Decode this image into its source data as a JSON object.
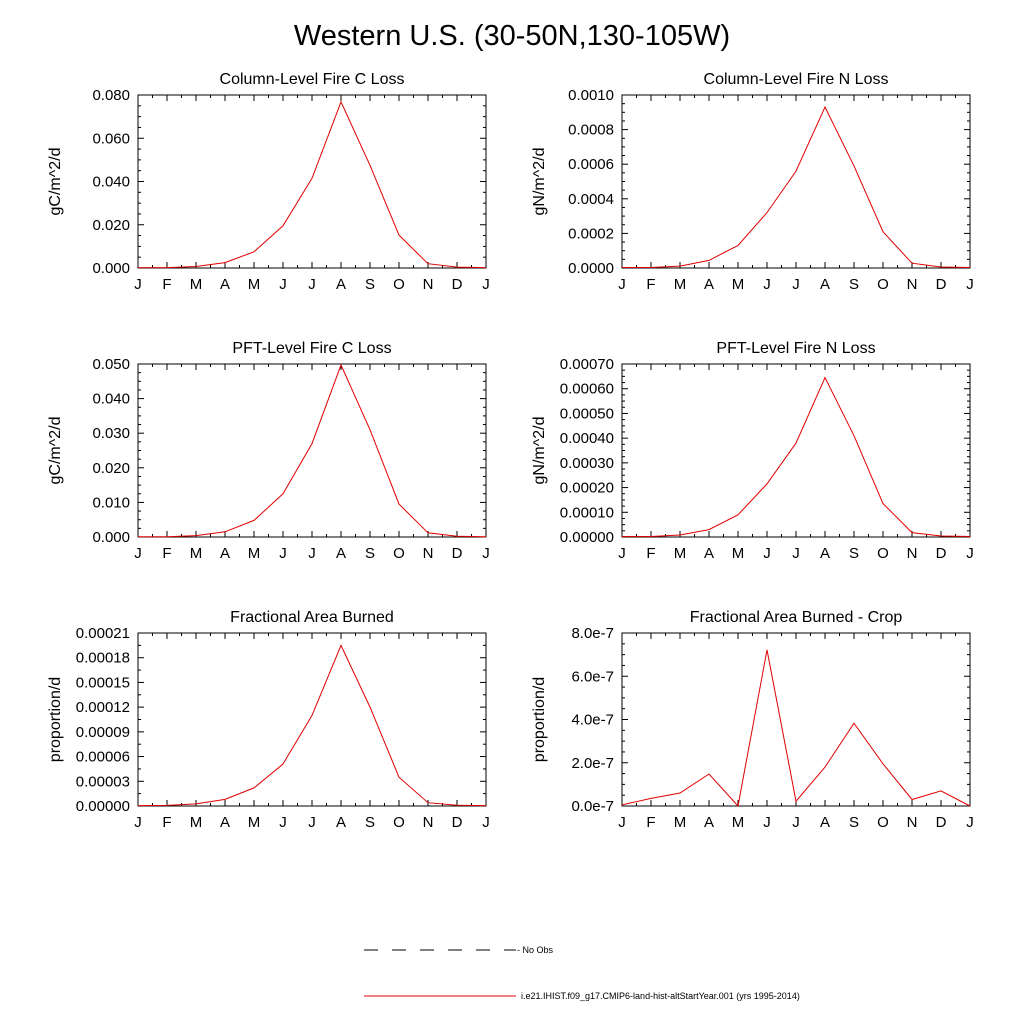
{
  "figure": {
    "title": "Western U.S. (30-50N,130-105W)"
  },
  "colors": {
    "series": "#e00000",
    "axes": "#000000",
    "obs_line": "#000000"
  },
  "legend": {
    "items": [
      {
        "label": "No Obs",
        "style": "dashed"
      },
      {
        "label": "i.e21.IHIST.f09_g17.CMIP6-land-hist-altStartYear.001 (yrs 1995-2014)",
        "style": "solid-red"
      }
    ]
  },
  "chart_data": [
    {
      "type": "line",
      "title": "Column-Level Fire C Loss",
      "ylabel": "gC/m^2/d",
      "categories": [
        "J",
        "F",
        "M",
        "A",
        "M",
        "J",
        "J",
        "A",
        "S",
        "O",
        "N",
        "D",
        "J"
      ],
      "ylim": [
        0,
        0.08
      ],
      "yticks": [
        "0.000",
        "0.020",
        "0.040",
        "0.060",
        "0.080"
      ],
      "minor_per_major": 4,
      "series": [
        {
          "values": [
            0.0002,
            0.0002,
            0.0007,
            0.0025,
            0.0075,
            0.0195,
            0.0415,
            0.0768,
            0.0475,
            0.0152,
            0.002,
            0.0004,
            0.0002
          ]
        }
      ]
    },
    {
      "type": "line",
      "title": "Column-Level Fire N Loss",
      "ylabel": "gN/m^2/d",
      "categories": [
        "J",
        "F",
        "M",
        "A",
        "M",
        "J",
        "J",
        "A",
        "S",
        "O",
        "N",
        "D",
        "J"
      ],
      "ylim": [
        0,
        0.001
      ],
      "yticks": [
        "0.0000",
        "0.0002",
        "0.0004",
        "0.0006",
        "0.0008",
        "0.0010"
      ],
      "minor_per_major": 4,
      "series": [
        {
          "values": [
            3e-06,
            3e-06,
            1.1e-05,
            4.4e-05,
            0.00013,
            0.00032,
            0.00056,
            0.00093,
            0.00059,
            0.00021,
            2.8e-05,
            6e-06,
            3e-06
          ]
        }
      ]
    },
    {
      "type": "line",
      "title": "PFT-Level Fire C Loss",
      "ylabel": "gC/m^2/d",
      "categories": [
        "J",
        "F",
        "M",
        "A",
        "M",
        "J",
        "J",
        "A",
        "S",
        "O",
        "N",
        "D",
        "J"
      ],
      "ylim": [
        0,
        0.05
      ],
      "yticks": [
        "0.000",
        "0.010",
        "0.020",
        "0.030",
        "0.040",
        "0.050"
      ],
      "minor_per_major": 4,
      "series": [
        {
          "values": [
            0.0001,
            0.0001,
            0.0004,
            0.0015,
            0.0048,
            0.0125,
            0.027,
            0.0497,
            0.031,
            0.0095,
            0.0012,
            0.0002,
            0.0001
          ]
        }
      ]
    },
    {
      "type": "line",
      "title": "PFT-Level Fire N Loss",
      "ylabel": "gN/m^2/d",
      "categories": [
        "J",
        "F",
        "M",
        "A",
        "M",
        "J",
        "J",
        "A",
        "S",
        "O",
        "N",
        "D",
        "J"
      ],
      "ylim": [
        0,
        0.0007
      ],
      "yticks": [
        "0.00000",
        "0.00010",
        "0.00020",
        "0.00030",
        "0.00040",
        "0.00050",
        "0.00060",
        "0.00070"
      ],
      "minor_per_major": 4,
      "series": [
        {
          "values": [
            2e-06,
            2e-06,
            8e-06,
            3e-05,
            9e-05,
            0.000215,
            0.00038,
            0.000645,
            0.00041,
            0.000135,
            1.8e-05,
            4e-06,
            2e-06
          ]
        }
      ]
    },
    {
      "type": "line",
      "title": "Fractional Area Burned",
      "ylabel": "proportion/d",
      "categories": [
        "J",
        "F",
        "M",
        "A",
        "M",
        "J",
        "J",
        "A",
        "S",
        "O",
        "N",
        "D",
        "J"
      ],
      "ylim": [
        0,
        0.00021
      ],
      "yticks": [
        "0.00000",
        "0.00003",
        "0.00006",
        "0.00009",
        "0.00012",
        "0.00015",
        "0.00018",
        "0.00021"
      ],
      "minor_per_major": 2,
      "series": [
        {
          "values": [
            5e-07,
            7e-07,
            2.5e-06,
            8e-06,
            2.2e-05,
            5.1e-05,
            0.00011,
            0.000195,
            0.00012,
            3.5e-05,
            4e-06,
            1e-06,
            5e-07
          ]
        }
      ]
    },
    {
      "type": "line",
      "title": "Fractional Area Burned - Crop",
      "ylabel": "proportion/d",
      "categories": [
        "J",
        "F",
        "M",
        "A",
        "M",
        "J",
        "J",
        "A",
        "S",
        "O",
        "N",
        "D",
        "J"
      ],
      "ylim": [
        0,
        8e-07
      ],
      "yticks": [
        "0.0e-7",
        "2.0e-7",
        "4.0e-7",
        "6.0e-7",
        "8.0e-7"
      ],
      "minor_per_major": 4,
      "series": [
        {
          "values": [
            5e-09,
            3.5e-08,
            6e-08,
            1.48e-07,
            0.0,
            7.22e-07,
            2.2e-08,
            1.8e-07,
            3.83e-07,
            1.95e-07,
            3e-08,
            7e-08,
            0.0
          ]
        }
      ]
    }
  ]
}
